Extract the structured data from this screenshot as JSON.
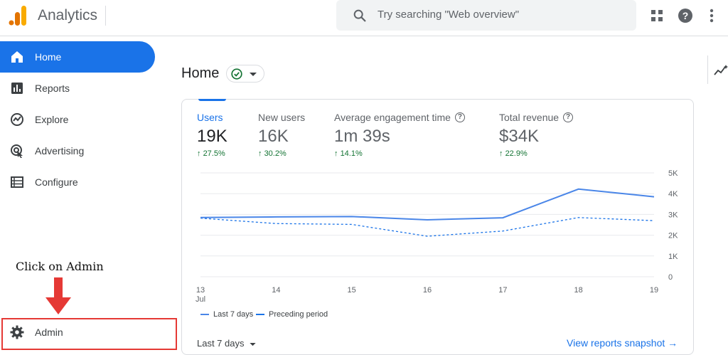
{
  "topbar": {
    "app_title": "Analytics",
    "search_placeholder": "Try searching \"Web overview\"",
    "icons": [
      "apps-grid-icon",
      "help-icon",
      "more-vert-icon"
    ]
  },
  "sidebar": {
    "items": [
      {
        "label": "Home",
        "icon": "home-icon",
        "active": true
      },
      {
        "label": "Reports",
        "icon": "bar-chart-icon",
        "active": false
      },
      {
        "label": "Explore",
        "icon": "explore-icon",
        "active": false
      },
      {
        "label": "Advertising",
        "icon": "advertising-icon",
        "active": false
      },
      {
        "label": "Configure",
        "icon": "configure-list-icon",
        "active": false
      }
    ],
    "admin_label": "Admin"
  },
  "annotation": {
    "text": "Click on Admin",
    "color": "#e53935"
  },
  "main": {
    "heading": "Home",
    "metrics": [
      {
        "label": "Users",
        "value": "19K",
        "change": "27.5%",
        "help": false,
        "active": true
      },
      {
        "label": "New users",
        "value": "16K",
        "change": "30.2%",
        "help": false,
        "active": false
      },
      {
        "label": "Average engagement time",
        "value": "1m 39s",
        "change": "14.1%",
        "help": true,
        "active": false
      },
      {
        "label": "Total revenue",
        "value": "$34K",
        "change": "22.9%",
        "help": true,
        "active": false
      }
    ],
    "legend": {
      "current": "Last 7 days",
      "previous": "Preceding period"
    },
    "date_range": "Last 7 days",
    "snapshot_link": "View reports snapshot"
  },
  "colors": {
    "accent": "#1a73e8",
    "positive": "#137333",
    "annotation": "#e53935"
  },
  "chart_data": {
    "type": "line",
    "x": [
      "13",
      "14",
      "15",
      "16",
      "17",
      "18",
      "19"
    ],
    "x_sublabel": "Jul",
    "y_ticks": [
      "5K",
      "4K",
      "3K",
      "2K",
      "1K",
      "0"
    ],
    "ylim": [
      0,
      5000
    ],
    "grid": true,
    "legend_position": "bottom-left",
    "series": [
      {
        "name": "Last 7 days",
        "values": [
          2850,
          2880,
          2900,
          2740,
          2840,
          4220,
          3850
        ],
        "style": "solid",
        "color": "#4a86e8"
      },
      {
        "name": "Preceding period",
        "values": [
          2820,
          2560,
          2520,
          1950,
          2200,
          2850,
          2700
        ],
        "style": "dashed",
        "color": "#1a73e8"
      }
    ]
  }
}
